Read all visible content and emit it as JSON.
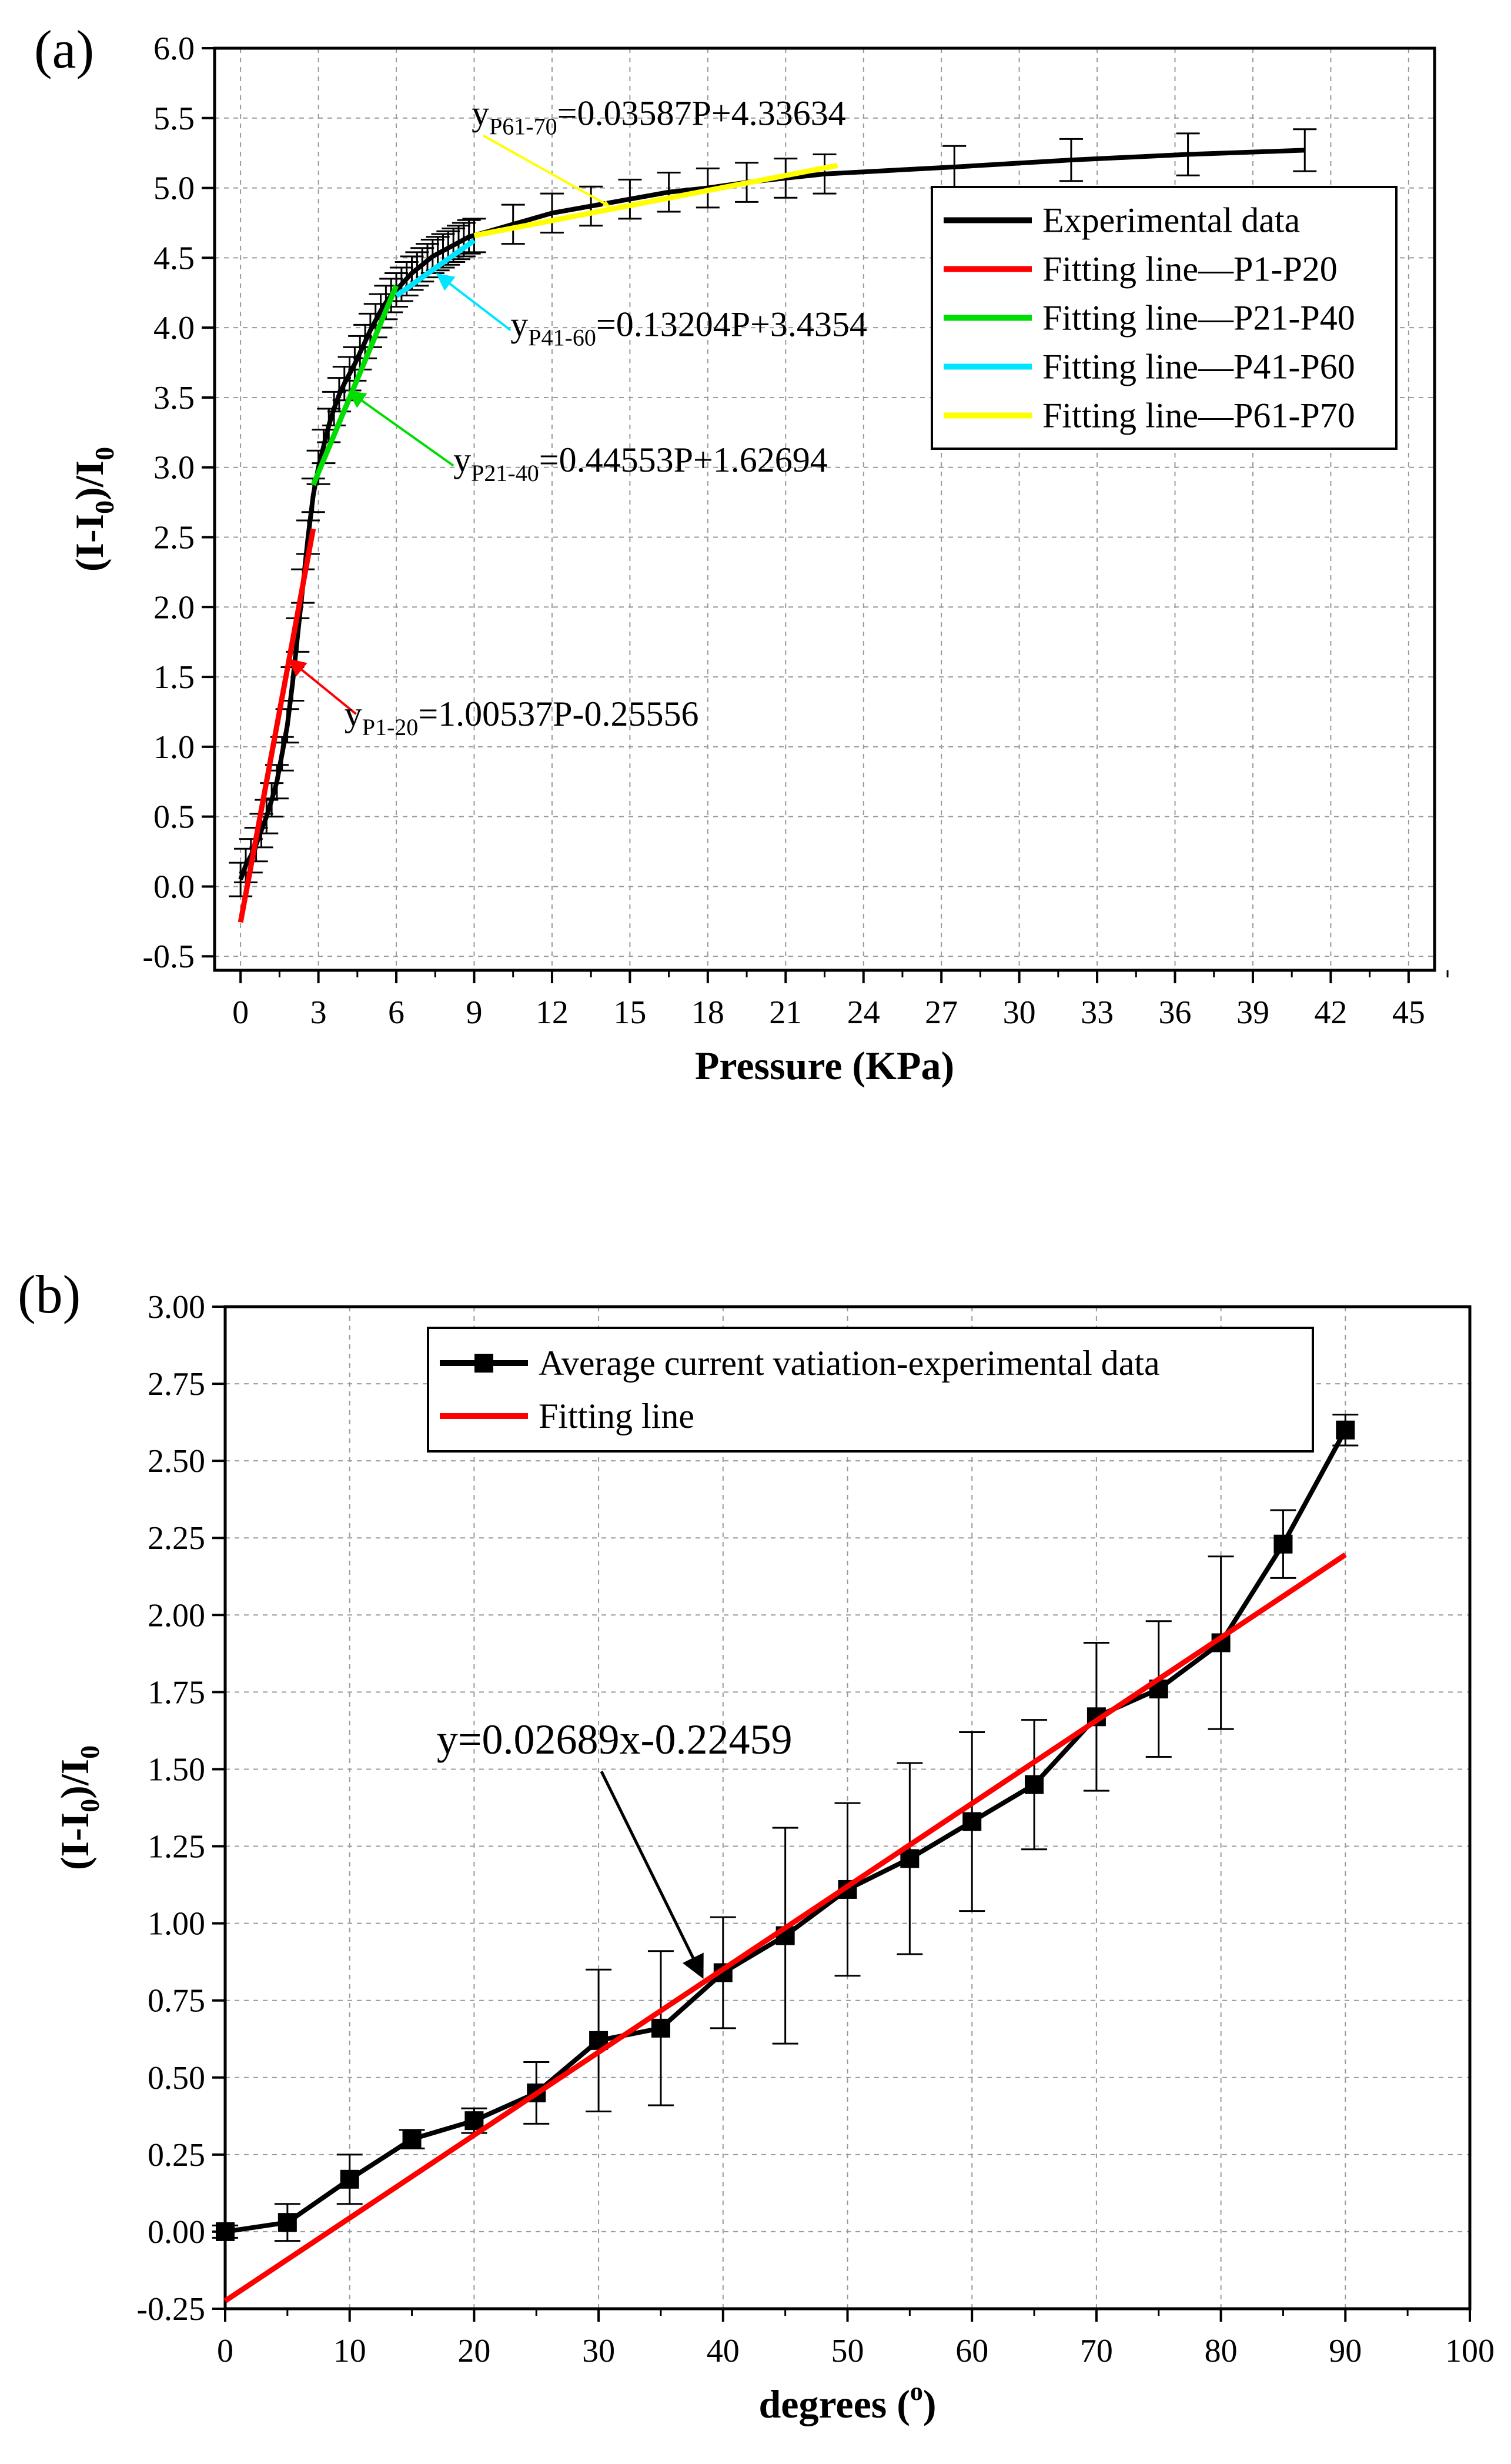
{
  "chart_data": [
    {
      "type": "line",
      "panel_label": "(a)",
      "xlabel": "Pressure (KPa)",
      "ylabel_main": "(I-I",
      "ylabel_sub": "0",
      "ylabel_mid": ")/I",
      "ylabel_end": "0",
      "xlim": [
        -1,
        46
      ],
      "ylim": [
        -0.6,
        6.0
      ],
      "xticks": [
        0,
        3,
        6,
        9,
        12,
        15,
        18,
        21,
        24,
        27,
        30,
        33,
        36,
        39,
        42,
        45
      ],
      "yticks": [
        -0.5,
        0.0,
        0.5,
        1.0,
        1.5,
        2.0,
        2.5,
        3.0,
        3.5,
        4.0,
        4.5,
        5.0,
        5.5,
        6.0
      ],
      "ytick_labels": [
        "-0.5",
        "0.0",
        "0.5",
        "1.0",
        "1.5",
        "2.0",
        "2.5",
        "3.0",
        "3.5",
        "4.0",
        "4.5",
        "5.0",
        "5.5",
        "6.0"
      ],
      "grid": true,
      "legend_position": "top-right",
      "series": [
        {
          "name": "Experimental data",
          "color": "#000000",
          "x": [
            0.0,
            0.2,
            0.4,
            0.6,
            0.8,
            1.0,
            1.2,
            1.4,
            1.6,
            1.8,
            2.0,
            2.2,
            2.4,
            2.6,
            2.8,
            3.0,
            3.2,
            3.4,
            3.6,
            3.8,
            4.0,
            4.2,
            4.4,
            4.6,
            4.8,
            5.0,
            5.2,
            5.4,
            5.6,
            5.8,
            6.0,
            6.2,
            6.4,
            6.6,
            6.8,
            7.0,
            7.2,
            7.4,
            7.6,
            7.8,
            8.0,
            8.2,
            8.4,
            8.6,
            8.8,
            9.0,
            10.5,
            12.0,
            13.5,
            15.0,
            16.5,
            18.0,
            19.5,
            21.0,
            22.5,
            27.5,
            32.0,
            36.5,
            41.0
          ],
          "y": [
            0.05,
            0.15,
            0.22,
            0.3,
            0.4,
            0.5,
            0.62,
            0.75,
            0.95,
            1.15,
            1.45,
            1.8,
            2.15,
            2.5,
            2.8,
            3.0,
            3.15,
            3.3,
            3.42,
            3.52,
            3.6,
            3.67,
            3.74,
            3.82,
            3.9,
            3.98,
            4.05,
            4.12,
            4.18,
            4.23,
            4.27,
            4.31,
            4.35,
            4.39,
            4.42,
            4.45,
            4.48,
            4.51,
            4.53,
            4.55,
            4.57,
            4.59,
            4.61,
            4.63,
            4.65,
            4.66,
            4.74,
            4.82,
            4.87,
            4.92,
            4.97,
            5.0,
            5.04,
            5.07,
            5.1,
            5.15,
            5.2,
            5.24,
            5.27
          ],
          "error": [
            0.12,
            0.12,
            0.12,
            0.12,
            0.12,
            0.12,
            0.12,
            0.12,
            0.12,
            0.12,
            0.12,
            0.12,
            0.12,
            0.12,
            0.12,
            0.12,
            0.12,
            0.12,
            0.12,
            0.12,
            0.12,
            0.12,
            0.12,
            0.12,
            0.12,
            0.12,
            0.12,
            0.12,
            0.12,
            0.12,
            0.12,
            0.12,
            0.12,
            0.12,
            0.12,
            0.12,
            0.12,
            0.12,
            0.12,
            0.12,
            0.12,
            0.12,
            0.12,
            0.12,
            0.12,
            0.12,
            0.14,
            0.14,
            0.14,
            0.14,
            0.14,
            0.14,
            0.14,
            0.14,
            0.14,
            0.15,
            0.15,
            0.15,
            0.15
          ]
        },
        {
          "name": "Fitting line—P1-P20",
          "color": "#ff0000",
          "x": [
            0.0,
            2.8
          ],
          "y": [
            -0.256,
            2.56
          ]
        },
        {
          "name": "Fitting line—P21-P40",
          "color": "#00dd00",
          "x": [
            2.8,
            6.0
          ],
          "y": [
            2.874,
            4.3
          ]
        },
        {
          "name": "Fitting line—P41-P60",
          "color": "#00e5ff",
          "x": [
            6.0,
            9.0
          ],
          "y": [
            4.228,
            4.624
          ]
        },
        {
          "name": "Fitting line—P61-P70",
          "color": "#ffff00",
          "x": [
            9.0,
            23.0
          ],
          "y": [
            4.659,
            5.161
          ]
        }
      ],
      "annotations": [
        {
          "main": "y",
          "sub": "P61-70",
          "rest": "=0.03587P+4.33634",
          "color": "#ffff00",
          "x": 8.9,
          "y": 5.45,
          "arrow_to": [
            14.2,
            4.87
          ]
        },
        {
          "main": "y",
          "sub": "P41-60",
          "rest": "=0.13204P+3.4354",
          "color": "#00e5ff",
          "x": 10.4,
          "y": 3.94,
          "arrow_to": [
            7.6,
            4.38
          ]
        },
        {
          "main": "y",
          "sub": "P21-40",
          "rest": "=0.44553P+1.62694",
          "color": "#00dd00",
          "x": 8.2,
          "y": 2.97,
          "arrow_to": [
            4.2,
            3.54
          ]
        },
        {
          "main": "y",
          "sub": "P1-20",
          "rest": "=1.00537P-0.25556",
          "color": "#ff0000",
          "x": 4.0,
          "y": 1.15,
          "arrow_to": [
            1.9,
            1.62
          ]
        }
      ]
    },
    {
      "type": "line",
      "panel_label": "(b)",
      "xlabel_main": "degrees (",
      "xlabel_sup": "o",
      "xlabel_end": ")",
      "ylabel_main": "(I-I",
      "ylabel_sub": "0",
      "ylabel_mid": ")/I",
      "ylabel_end": "0",
      "xlim": [
        0,
        100
      ],
      "ylim": [
        -0.25,
        3.0
      ],
      "xticks": [
        0,
        10,
        20,
        30,
        40,
        50,
        60,
        70,
        80,
        90,
        100
      ],
      "yticks": [
        -0.25,
        0.0,
        0.25,
        0.5,
        0.75,
        1.0,
        1.25,
        1.5,
        1.75,
        2.0,
        2.25,
        2.5,
        2.75,
        3.0
      ],
      "ytick_labels": [
        "-0.25",
        "0.00",
        "0.25",
        "0.50",
        "0.75",
        "1.00",
        "1.25",
        "1.50",
        "1.75",
        "2.00",
        "2.25",
        "2.50",
        "2.75",
        "3.00"
      ],
      "grid": true,
      "legend_position": "top",
      "series": [
        {
          "name": "Average current vatiation-experimental data",
          "color": "#000000",
          "marker": "square",
          "x": [
            0,
            5,
            10,
            15,
            20,
            25,
            30,
            35,
            40,
            45,
            50,
            55,
            60,
            65,
            70,
            75,
            80,
            85,
            90
          ],
          "y": [
            0.0,
            0.03,
            0.17,
            0.3,
            0.36,
            0.45,
            0.62,
            0.66,
            0.84,
            0.96,
            1.11,
            1.21,
            1.33,
            1.45,
            1.67,
            1.76,
            1.91,
            2.23,
            2.6
          ],
          "error": [
            0.02,
            0.06,
            0.08,
            0.03,
            0.04,
            0.1,
            0.23,
            0.25,
            0.18,
            0.35,
            0.28,
            0.31,
            0.29,
            0.21,
            0.24,
            0.22,
            0.28,
            0.11,
            0.05
          ]
        },
        {
          "name": "Fitting line",
          "color": "#ff0000",
          "x": [
            0,
            90
          ],
          "y": [
            -0.2246,
            2.1955
          ]
        }
      ],
      "annotations": [
        {
          "text": "y=0.02689x-0.22459",
          "x": 17,
          "y": 1.55,
          "arrow_to": [
            38.3,
            0.83
          ]
        }
      ]
    }
  ]
}
